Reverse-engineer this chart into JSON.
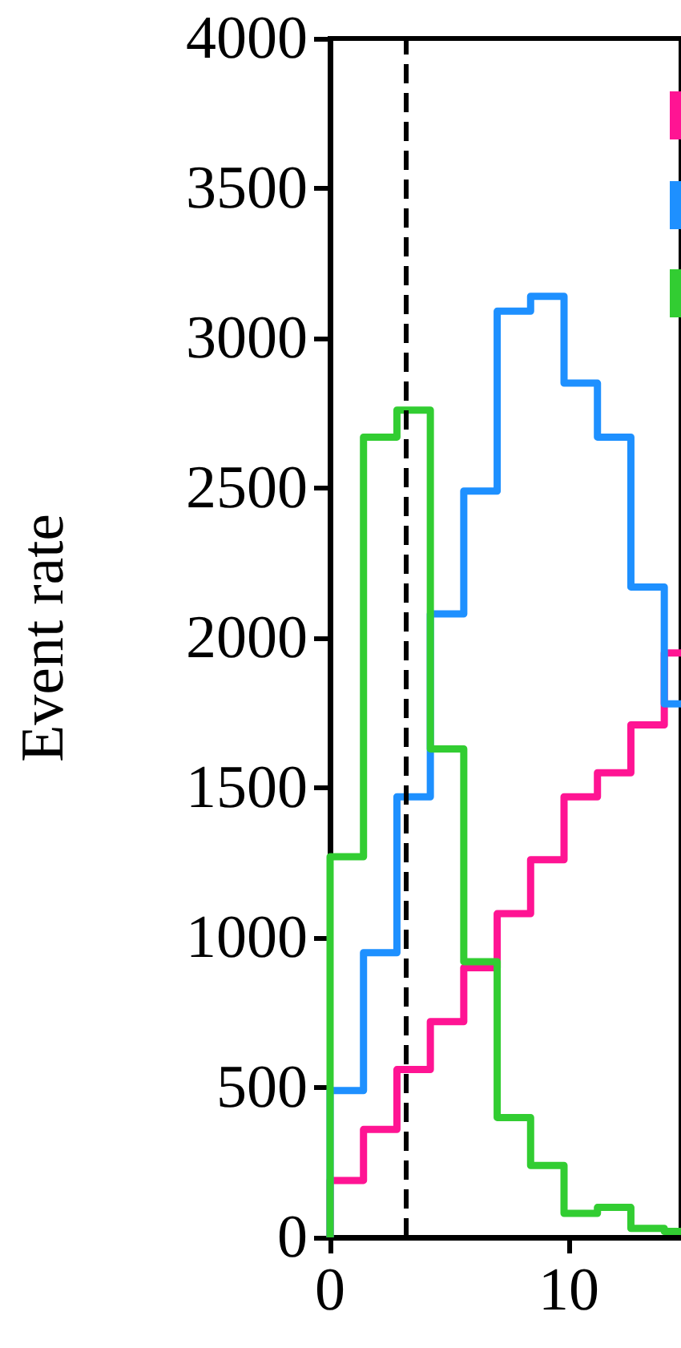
{
  "chart_data": {
    "type": "histogram",
    "ylabel": "Event rate",
    "bins": [
      0,
      1.4,
      2.8,
      4.2,
      5.6,
      7.0,
      8.4,
      9.8,
      11.2,
      12.6,
      14.0,
      15.4
    ],
    "series": [
      {
        "color": "#ff1493",
        "values": [
          190,
          360,
          560,
          720,
          900,
          1080,
          1260,
          1470,
          1550,
          1710,
          1950
        ]
      },
      {
        "color": "#1e90ff",
        "values": [
          490,
          950,
          1470,
          2080,
          2490,
          3090,
          3140,
          2850,
          2670,
          2170,
          1780
        ]
      },
      {
        "color": "#32cd32",
        "values": [
          1270,
          2670,
          2760,
          1630,
          920,
          400,
          240,
          80,
          100,
          30,
          20
        ]
      }
    ],
    "xlim": [
      0,
      14.7
    ],
    "xticks": [
      0,
      10
    ],
    "ylim": [
      0,
      4000
    ],
    "yticks": [
      0,
      500,
      1000,
      1500,
      2000,
      2500,
      3000,
      3500,
      4000
    ],
    "ref_lines": [
      {
        "axis": "x",
        "value": 3.16,
        "color": "#000000",
        "line_style": "dashed"
      }
    ],
    "grid": false
  }
}
